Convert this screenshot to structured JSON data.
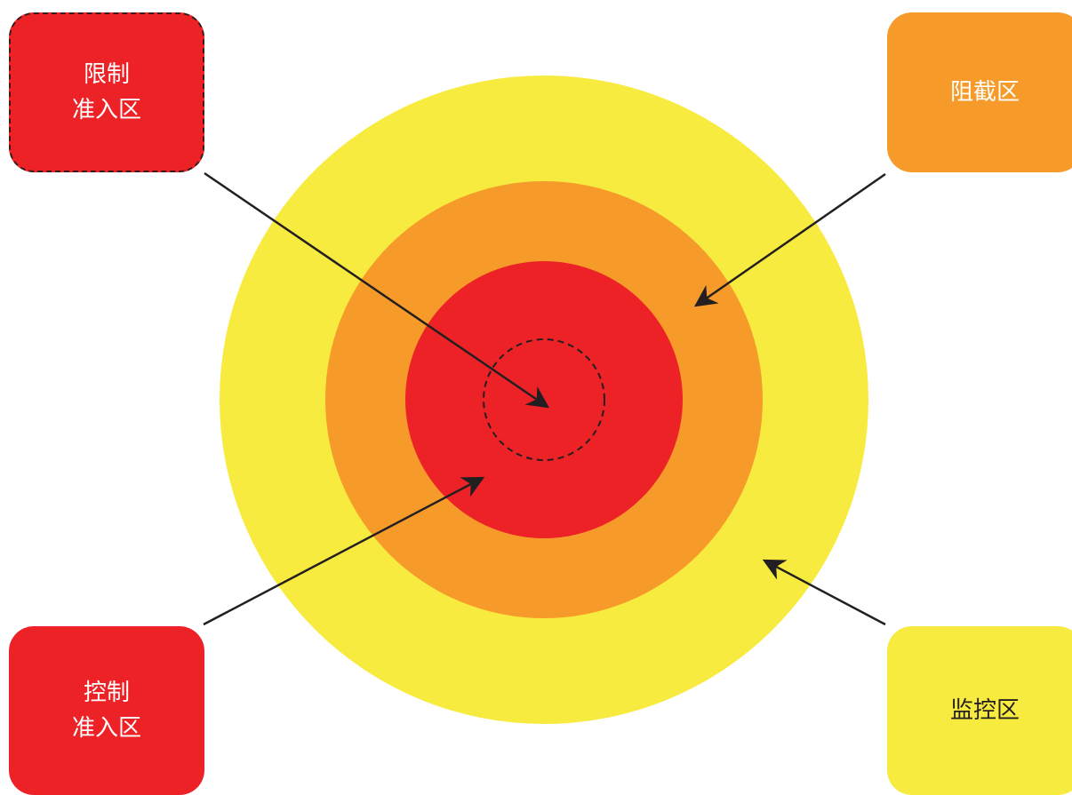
{
  "colors": {
    "monitor": "#F7EB3F",
    "intercept": "#F69A2A",
    "control": "#EC2227",
    "line": "#231F20"
  },
  "zones": {
    "restricted": {
      "line1": "限制",
      "line2": "准入区"
    },
    "intercept": {
      "label": "阻截区"
    },
    "controlled": {
      "line1": "控制",
      "line2": "准入区"
    },
    "monitor": {
      "label": "监控区"
    }
  }
}
